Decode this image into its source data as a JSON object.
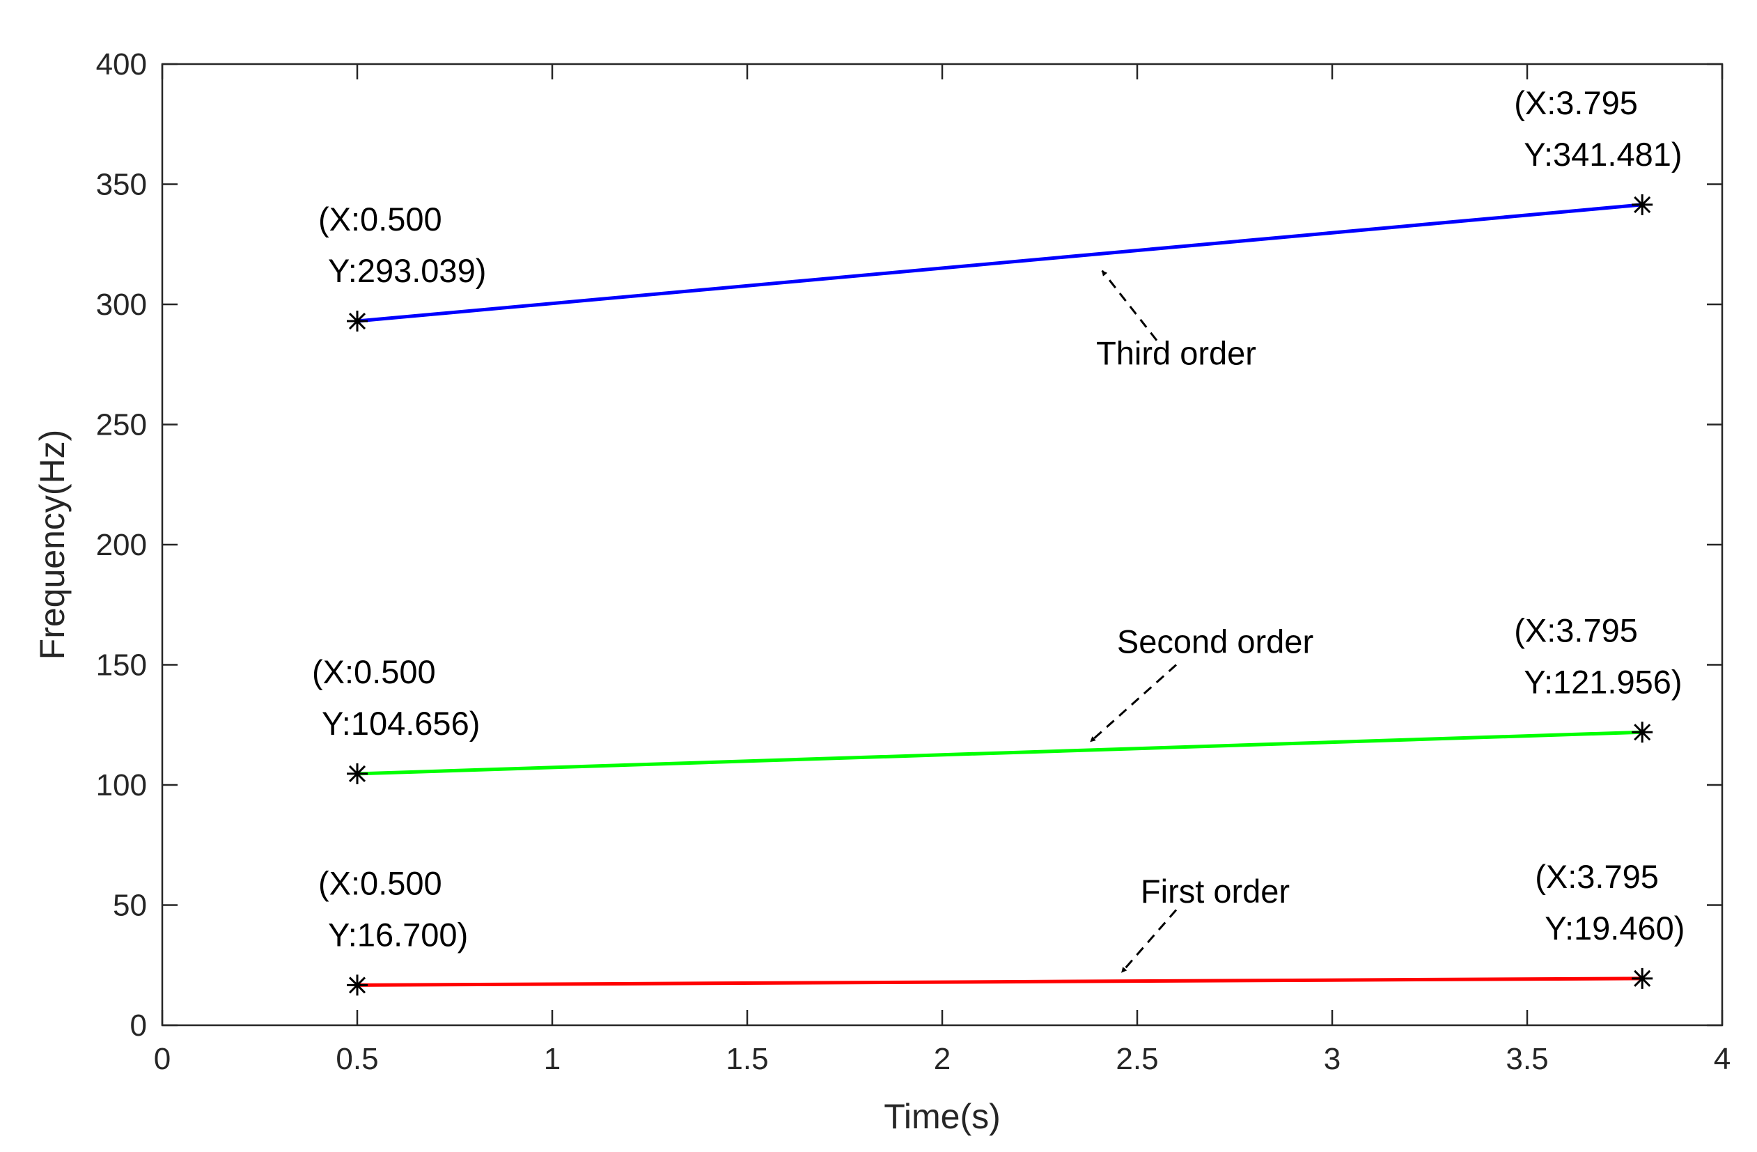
{
  "chart_data": {
    "type": "line",
    "title": "",
    "xlabel": "Time(s)",
    "ylabel": "Frequency(Hz)",
    "xlim": [
      0,
      4
    ],
    "ylim": [
      0,
      400
    ],
    "xticks": [
      0,
      0.5,
      1,
      1.5,
      2,
      2.5,
      3,
      3.5,
      4
    ],
    "yticks": [
      0,
      50,
      100,
      150,
      200,
      250,
      300,
      350,
      400
    ],
    "xtick_labels": [
      "0",
      "0.5",
      "1",
      "1.5",
      "2",
      "2.5",
      "3",
      "3.5",
      "4"
    ],
    "ytick_labels": [
      "0",
      "50",
      "100",
      "150",
      "200",
      "250",
      "300",
      "350",
      "400"
    ],
    "grid": false,
    "series": [
      {
        "name": "First order",
        "color": "#ff0000",
        "x": [
          0.5,
          3.795
        ],
        "y": [
          16.7,
          19.46
        ],
        "start_label": [
          "(X:0.500",
          "Y:16.700)"
        ],
        "end_label": [
          "(X:3.795",
          "Y:19.460)"
        ]
      },
      {
        "name": "Second order",
        "color": "#00ff00",
        "x": [
          0.5,
          3.795
        ],
        "y": [
          104.656,
          121.956
        ],
        "start_label": [
          "(X:0.500",
          "Y:104.656)"
        ],
        "end_label": [
          "(X:3.795",
          "Y:121.956)"
        ]
      },
      {
        "name": "Third order",
        "color": "#0000ff",
        "x": [
          0.5,
          3.795
        ],
        "y": [
          293.039,
          341.481
        ],
        "start_label": [
          "(X:0.500",
          "Y:293.039)"
        ],
        "end_label": [
          "(X:3.795",
          "Y:341.481)"
        ]
      }
    ],
    "annotations": [
      {
        "text": "Third order",
        "series": "Third order",
        "text_at": [
          2.6,
          275
        ],
        "arrow_from": [
          2.55,
          285
        ],
        "arrow_to": [
          2.41,
          314
        ]
      },
      {
        "text": "Second order",
        "series": "Second order",
        "text_at": [
          2.7,
          155
        ],
        "arrow_from": [
          2.6,
          150
        ],
        "arrow_to": [
          2.38,
          118
        ]
      },
      {
        "text": "First order",
        "series": "First order",
        "text_at": [
          2.7,
          51
        ],
        "arrow_from": [
          2.6,
          48
        ],
        "arrow_to": [
          2.46,
          22
        ]
      }
    ]
  }
}
